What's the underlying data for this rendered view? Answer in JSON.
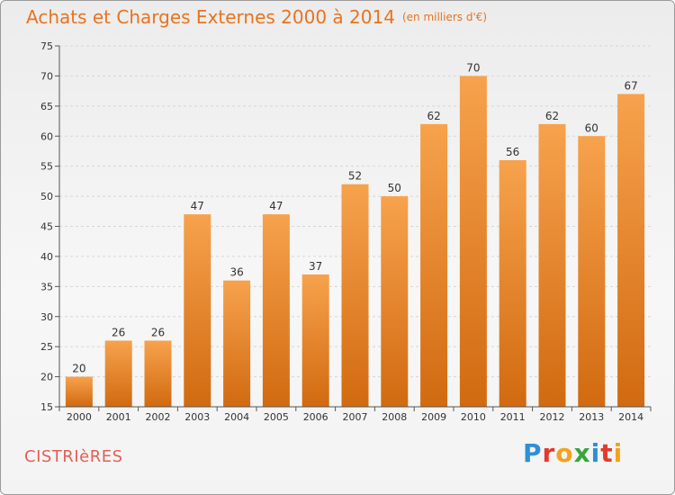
{
  "header": {
    "title": "Achats et Charges Externes 2000 à 2014",
    "unit": "(en milliers d'€)"
  },
  "footer": {
    "commune": "CISTRIèRES",
    "logo_letters": [
      "P",
      "r",
      "o",
      "x",
      "i",
      "t",
      "i"
    ],
    "logo_colors": [
      "#2f8fd6",
      "#e23b2c",
      "#f4a21e",
      "#3aa63a",
      "#2f8fd6",
      "#e23b2c",
      "#f4a21e"
    ]
  },
  "colors": {
    "bar_top": "#f7a24d",
    "bar_bottom": "#d16a10",
    "title": "#e8731f",
    "commune": "#e35f55"
  },
  "chart_data": {
    "type": "bar",
    "categories": [
      "2000",
      "2001",
      "2002",
      "2003",
      "2004",
      "2005",
      "2006",
      "2007",
      "2008",
      "2009",
      "2010",
      "2011",
      "2012",
      "2013",
      "2014"
    ],
    "values": [
      20,
      26,
      26,
      47,
      36,
      47,
      37,
      52,
      50,
      62,
      70,
      56,
      62,
      60,
      67
    ],
    "title": "Achats et Charges Externes 2000 à 2014",
    "ylim": [
      15,
      75
    ],
    "yticks": [
      15,
      20,
      25,
      30,
      35,
      40,
      45,
      50,
      55,
      60,
      65,
      70,
      75
    ],
    "grid": true,
    "legend": "none"
  }
}
